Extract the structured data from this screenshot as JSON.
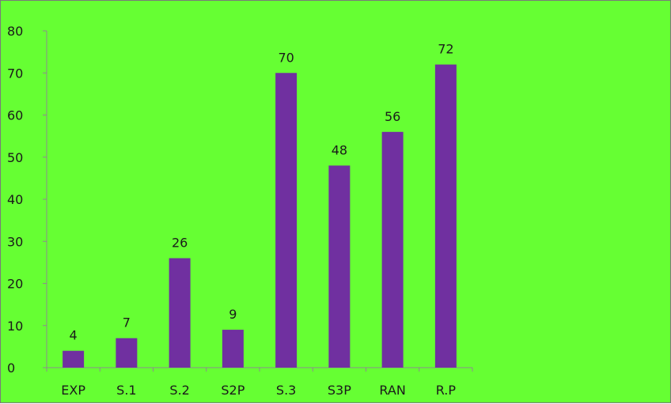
{
  "chart_data": {
    "type": "bar",
    "categories": [
      "EXP",
      "S.1",
      "S.2",
      "S2P",
      "S.3",
      "S3P",
      "RAN",
      "R.P"
    ],
    "values": [
      4,
      7,
      26,
      9,
      70,
      48,
      56,
      72
    ],
    "data_labels": [
      "4",
      "7",
      "26",
      "9",
      "70",
      "48",
      "56",
      "72"
    ],
    "y_ticks": [
      "0",
      "10",
      "20",
      "30",
      "40",
      "50",
      "60",
      "70",
      "80"
    ],
    "ylim": [
      0,
      80
    ],
    "grid": false,
    "legend": "none",
    "bar_color": "#7030a0",
    "background_color": "#66ff33",
    "axis_color": "#8c8c8c"
  }
}
